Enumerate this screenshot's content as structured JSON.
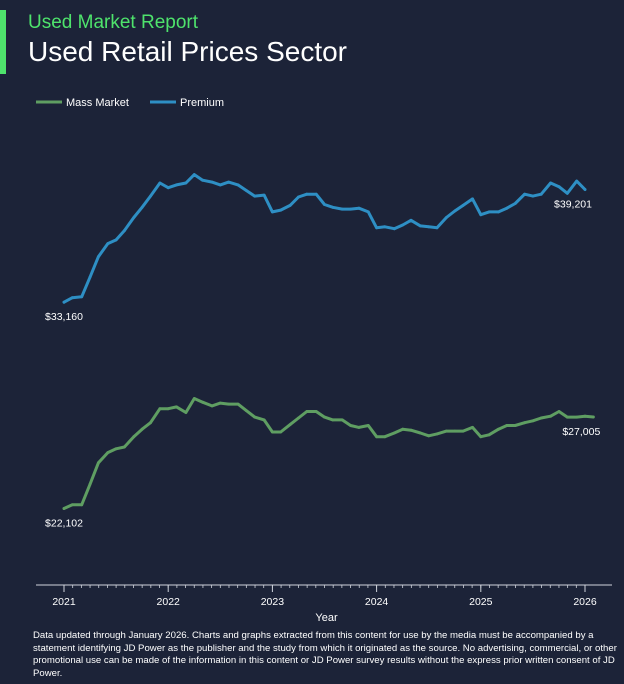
{
  "header": {
    "subtitle": "Used Market Report",
    "title": "Used Retail Prices Sector"
  },
  "colors": {
    "background": "#1c2338",
    "accent": "#4ee36c",
    "mass_market": "#5f9e62",
    "premium": "#2e8fc4",
    "axis": "#cfd3dc"
  },
  "chart_data": {
    "type": "line",
    "xlabel": "Year",
    "ylabel": "",
    "xlim": [
      2021,
      2026
    ],
    "ylim": [
      18000,
      44000
    ],
    "x_ticks": [
      "2021",
      "2022",
      "2023",
      "2024",
      "2025",
      "2026"
    ],
    "legend": {
      "placement": "top-left",
      "entries": [
        "Mass Market",
        "Premium"
      ]
    },
    "grid": false,
    "series": [
      {
        "name": "Mass Market",
        "color": "#5f9e62",
        "start_label": "$22,102",
        "end_label": "$27,005",
        "points": [
          [
            2021.0,
            22102
          ],
          [
            2021.08,
            22300
          ],
          [
            2021.17,
            22300
          ],
          [
            2021.25,
            23400
          ],
          [
            2021.33,
            24550
          ],
          [
            2021.42,
            25100
          ],
          [
            2021.5,
            25300
          ],
          [
            2021.58,
            25400
          ],
          [
            2021.67,
            25950
          ],
          [
            2021.75,
            26350
          ],
          [
            2021.83,
            26700
          ],
          [
            2021.92,
            27450
          ],
          [
            2022.0,
            27450
          ],
          [
            2022.08,
            27550
          ],
          [
            2022.17,
            27250
          ],
          [
            2022.25,
            28000
          ],
          [
            2022.33,
            27800
          ],
          [
            2022.42,
            27600
          ],
          [
            2022.5,
            27750
          ],
          [
            2022.58,
            27700
          ],
          [
            2022.67,
            27700
          ],
          [
            2022.75,
            27350
          ],
          [
            2022.83,
            27000
          ],
          [
            2022.92,
            26850
          ],
          [
            2023.0,
            26200
          ],
          [
            2023.08,
            26200
          ],
          [
            2023.17,
            26600
          ],
          [
            2023.25,
            26950
          ],
          [
            2023.33,
            27300
          ],
          [
            2023.42,
            27300
          ],
          [
            2023.5,
            27000
          ],
          [
            2023.58,
            26850
          ],
          [
            2023.67,
            26850
          ],
          [
            2023.75,
            26550
          ],
          [
            2023.83,
            26450
          ],
          [
            2023.92,
            26550
          ],
          [
            2024.0,
            25950
          ],
          [
            2024.08,
            25950
          ],
          [
            2024.17,
            26150
          ],
          [
            2024.25,
            26350
          ],
          [
            2024.33,
            26300
          ],
          [
            2024.42,
            26150
          ],
          [
            2024.5,
            26000
          ],
          [
            2024.58,
            26100
          ],
          [
            2024.67,
            26250
          ],
          [
            2024.75,
            26250
          ],
          [
            2024.83,
            26250
          ],
          [
            2024.92,
            26450
          ],
          [
            2025.0,
            25950
          ],
          [
            2025.08,
            26050
          ],
          [
            2025.17,
            26350
          ],
          [
            2025.25,
            26550
          ],
          [
            2025.33,
            26550
          ],
          [
            2025.42,
            26700
          ],
          [
            2025.5,
            26800
          ],
          [
            2025.58,
            26950
          ],
          [
            2025.67,
            27050
          ],
          [
            2025.75,
            27300
          ],
          [
            2025.83,
            27000
          ],
          [
            2025.92,
            27000
          ],
          [
            2026.0,
            27050
          ],
          [
            2026.08,
            27005
          ]
        ]
      },
      {
        "name": "Premium",
        "color": "#2e8fc4",
        "start_label": "$33,160",
        "end_label": "$39,201",
        "points": [
          [
            2021.0,
            33160
          ],
          [
            2021.08,
            33400
          ],
          [
            2021.17,
            33450
          ],
          [
            2021.25,
            34500
          ],
          [
            2021.33,
            35600
          ],
          [
            2021.42,
            36300
          ],
          [
            2021.5,
            36500
          ],
          [
            2021.58,
            37000
          ],
          [
            2021.67,
            37700
          ],
          [
            2021.75,
            38250
          ],
          [
            2021.83,
            38850
          ],
          [
            2021.92,
            39550
          ],
          [
            2022.0,
            39300
          ],
          [
            2022.08,
            39450
          ],
          [
            2022.17,
            39550
          ],
          [
            2022.25,
            40000
          ],
          [
            2022.33,
            39700
          ],
          [
            2022.42,
            39600
          ],
          [
            2022.5,
            39450
          ],
          [
            2022.58,
            39600
          ],
          [
            2022.67,
            39450
          ],
          [
            2022.75,
            39150
          ],
          [
            2022.83,
            38850
          ],
          [
            2022.92,
            38900
          ],
          [
            2023.0,
            38000
          ],
          [
            2023.08,
            38100
          ],
          [
            2023.17,
            38350
          ],
          [
            2023.25,
            38800
          ],
          [
            2023.33,
            38950
          ],
          [
            2023.42,
            38950
          ],
          [
            2023.5,
            38400
          ],
          [
            2023.58,
            38250
          ],
          [
            2023.67,
            38150
          ],
          [
            2023.75,
            38150
          ],
          [
            2023.83,
            38200
          ],
          [
            2023.92,
            38000
          ],
          [
            2024.0,
            37150
          ],
          [
            2024.08,
            37200
          ],
          [
            2024.17,
            37100
          ],
          [
            2024.25,
            37300
          ],
          [
            2024.33,
            37550
          ],
          [
            2024.42,
            37250
          ],
          [
            2024.5,
            37200
          ],
          [
            2024.58,
            37150
          ],
          [
            2024.67,
            37700
          ],
          [
            2024.75,
            38050
          ],
          [
            2024.83,
            38350
          ],
          [
            2024.92,
            38700
          ],
          [
            2025.0,
            37850
          ],
          [
            2025.08,
            38000
          ],
          [
            2025.17,
            38000
          ],
          [
            2025.25,
            38200
          ],
          [
            2025.33,
            38450
          ],
          [
            2025.42,
            38950
          ],
          [
            2025.5,
            38850
          ],
          [
            2025.58,
            38950
          ],
          [
            2025.67,
            39550
          ],
          [
            2025.75,
            39350
          ],
          [
            2025.83,
            39000
          ],
          [
            2025.92,
            39650
          ],
          [
            2026.0,
            39201
          ]
        ]
      }
    ]
  },
  "footnote": "Data updated through January 2026. Charts and graphs extracted from this content for use by the media must be accompanied by a statement identifying JD Power as the publisher and the study from which it originated as the source. No advertising, commercial, or other promotional use can be made of the information in this content or JD Power survey results without the express prior written consent of JD Power."
}
